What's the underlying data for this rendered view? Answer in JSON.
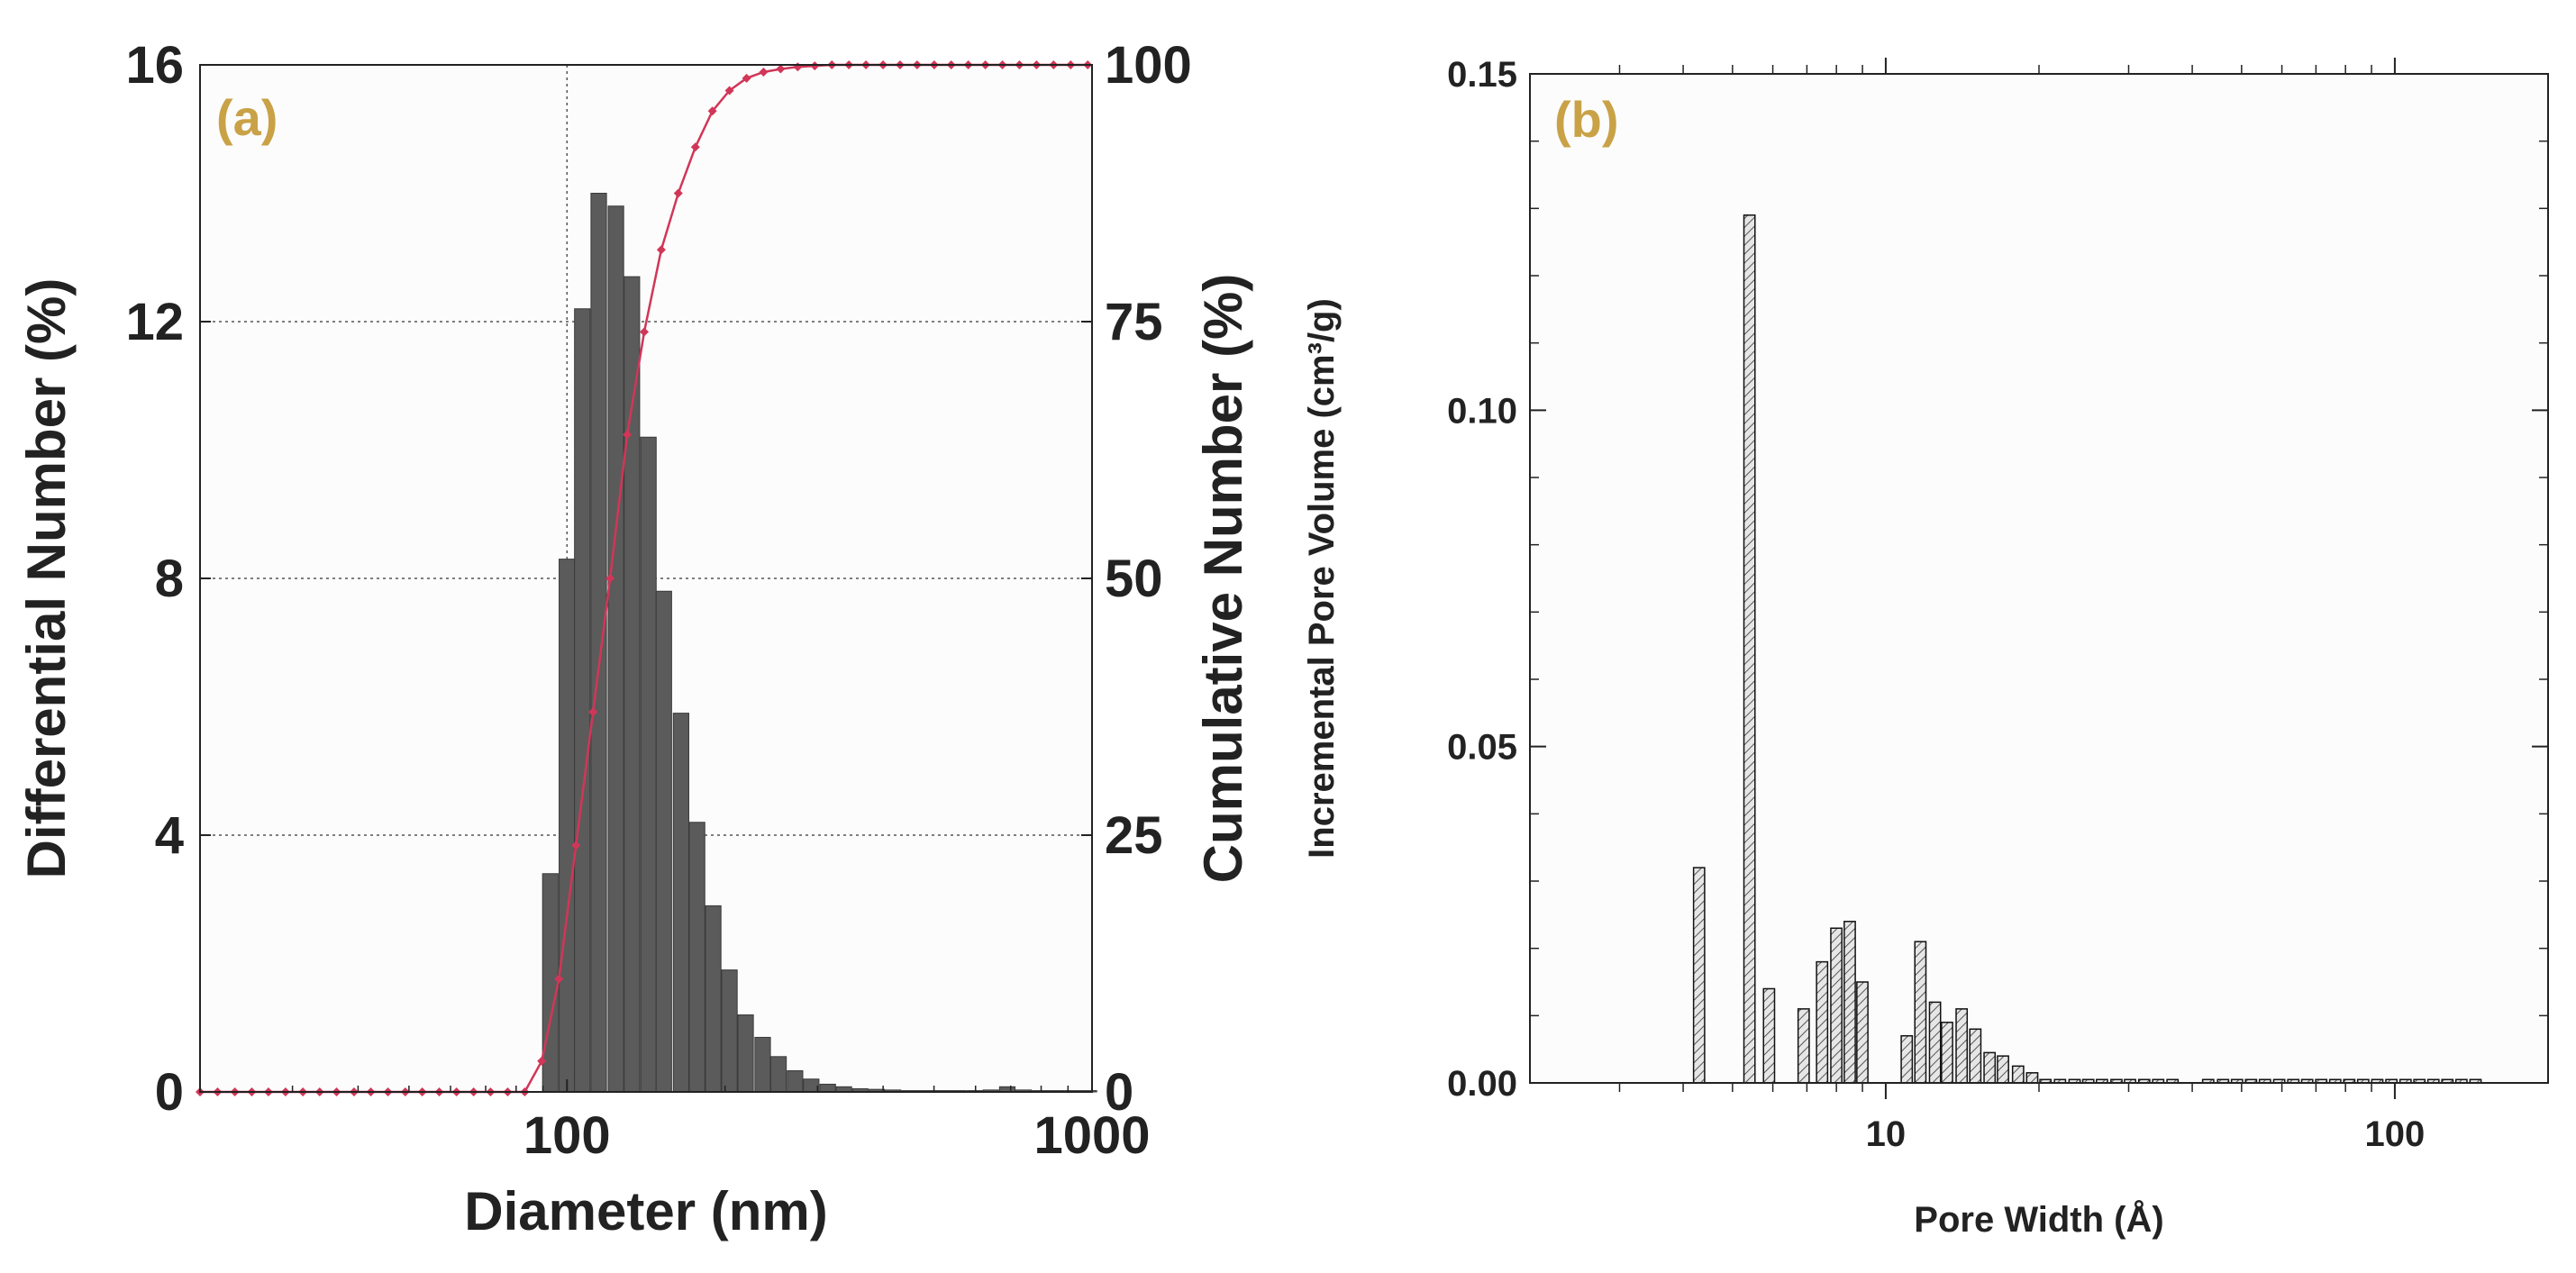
{
  "chart_data": [
    {
      "type": "bar",
      "panel_label": "(a)",
      "xscale": "log",
      "xlim": [
        20,
        1000
      ],
      "xticks": [
        100,
        1000
      ],
      "xtick_labels": [
        "100",
        "1000"
      ],
      "xlabel": "Diameter (nm)",
      "ylabel": "Differential Number (%)",
      "ylim": [
        0,
        16
      ],
      "yticks": [
        0,
        4,
        8,
        12,
        16
      ],
      "y2label": "Cumulative Number (%)",
      "y2lim": [
        0,
        100
      ],
      "y2ticks": [
        0,
        25,
        50,
        75,
        100
      ],
      "grid": true,
      "series": [
        {
          "name": "Differential Number (%)",
          "kind": "bar",
          "axis": "left",
          "x": [
            93,
            100,
            107,
            115,
            124,
            133,
            143,
            153,
            165,
            177,
            190,
            204,
            219,
            236,
            253,
            272,
            292,
            314,
            337,
            362,
            389,
            418,
            449,
            482,
            518,
            556,
            598,
            642,
            690,
            741,
            796,
            855,
            919,
            987
          ],
          "values": [
            3.4,
            8.3,
            12.2,
            14.0,
            13.8,
            12.7,
            10.2,
            7.8,
            5.9,
            4.2,
            2.9,
            1.9,
            1.2,
            0.85,
            0.55,
            0.33,
            0.2,
            0.12,
            0.08,
            0.05,
            0.04,
            0.03,
            0.02,
            0.02,
            0.02,
            0.02,
            0.02,
            0.03,
            0.08,
            0.03,
            0.02,
            0.02,
            0.02,
            0.02
          ],
          "color": "#5b5b5b"
        },
        {
          "name": "Cumulative Number (%)",
          "kind": "line",
          "axis": "right",
          "x": [
            20.0,
            21.6,
            23.3,
            25.1,
            27.0,
            29.1,
            31.4,
            33.8,
            36.4,
            39.3,
            42.3,
            45.6,
            49.2,
            53.0,
            57.1,
            61.6,
            66.4,
            71.5,
            77.1,
            83.1,
            89.5,
            96.5,
            104,
            112.1,
            120.8,
            130.2,
            140.3,
            151.2,
            162.9,
            175.6,
            189.2,
            203.9,
            219.8,
            236.8,
            255.2,
            275.1,
            296.4,
            319.5,
            344.3,
            371.0,
            399.9,
            430.9,
            464.4,
            500.5,
            539.3,
            581.2,
            626.4,
            675.0,
            727.4,
            784.0,
            844.9,
            910.5,
            981.2
          ],
          "values": [
            0,
            0,
            0,
            0,
            0,
            0,
            0,
            0,
            0,
            0,
            0,
            0,
            0,
            0,
            0,
            0,
            0,
            0,
            0,
            0,
            3,
            11,
            24,
            37,
            50,
            64,
            74,
            82,
            87.5,
            92,
            95.5,
            97.5,
            98.7,
            99.3,
            99.6,
            99.8,
            99.9,
            100,
            100,
            100,
            100,
            100,
            100,
            100,
            100,
            100,
            100,
            100,
            100,
            100,
            100,
            100,
            100
          ],
          "color": "#d13658"
        }
      ]
    },
    {
      "type": "bar",
      "panel_label": "(b)",
      "xscale": "log",
      "xlim": [
        2,
        200
      ],
      "xticks": [
        10,
        100
      ],
      "xtick_labels": [
        "10",
        "100"
      ],
      "xlabel": "Pore Width (Å)",
      "ylabel": "Incremental Pore Volume (cm³/g)",
      "ylim": [
        0,
        0.15
      ],
      "yticks": [
        0.0,
        0.05,
        0.1,
        0.15
      ],
      "ytick_labels": [
        "0.00",
        "0.05",
        "0.10",
        "0.15"
      ],
      "grid": false,
      "series": [
        {
          "name": "Incremental Pore Volume",
          "kind": "bar",
          "x": [
            4.3,
            5.4,
            5.9,
            6.9,
            7.5,
            8.0,
            8.5,
            9.0,
            11.0,
            11.7,
            12.5,
            13.2,
            14.1,
            15.0,
            16.0,
            17.0,
            18.2,
            19.4,
            20.6,
            22.0,
            23.5,
            25.0,
            26.6,
            28.4,
            30.2,
            32.2,
            34.3,
            36.6,
            43.0,
            46.0,
            49.0,
            52.2,
            55.6,
            59.3,
            63.2,
            67.3,
            71.7,
            76.4,
            81.4,
            86.7,
            92.4,
            98.5,
            105,
            111.8,
            119.1,
            126.9,
            135.2,
            144.1
          ],
          "values": [
            0.032,
            0.129,
            0.014,
            0.011,
            0.018,
            0.023,
            0.024,
            0.015,
            0.007,
            0.021,
            0.012,
            0.009,
            0.011,
            0.008,
            0.0045,
            0.004,
            0.0025,
            0.0015,
            0.0005,
            0.0005,
            0.0005,
            0.0005,
            0.0005,
            0.0005,
            0.0005,
            0.0005,
            0.0005,
            0.0005,
            0.0005,
            0.0005,
            0.0005,
            0.0005,
            0.0005,
            0.0005,
            0.0005,
            0.0005,
            0.0005,
            0.0005,
            0.0005,
            0.0005,
            0.0005,
            0.0005,
            0.0005,
            0.0005,
            0.0005,
            0.0005,
            0.0005,
            0.0005
          ],
          "color": "#d9d9d9"
        }
      ]
    }
  ],
  "style": {
    "panel_label_color": "#c9a247",
    "axis_color": "#222222",
    "grid_color": "#555555"
  }
}
